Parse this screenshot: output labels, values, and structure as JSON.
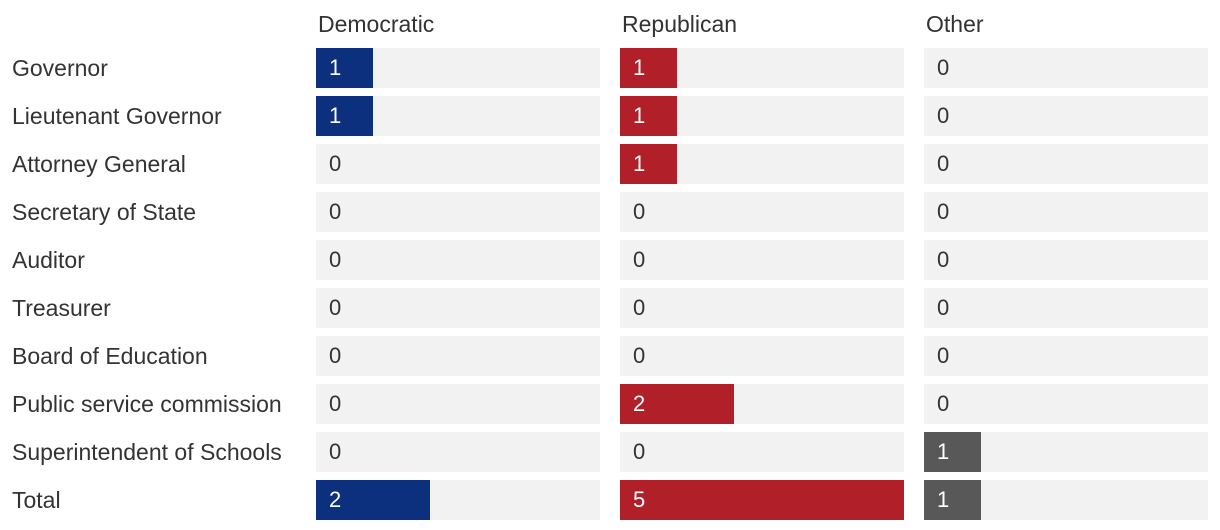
{
  "chart_data": {
    "type": "bar",
    "columns": [
      {
        "name": "Democratic",
        "color": "#0c2f7e"
      },
      {
        "name": "Republican",
        "color": "#b11f29"
      },
      {
        "name": "Other",
        "color": "#585858"
      }
    ],
    "categories": [
      "Governor",
      "Lieutenant Governor",
      "Attorney General",
      "Secretary of State",
      "Auditor",
      "Treasurer",
      "Board of Education",
      "Public service commission",
      "Superintendent of Schools",
      "Total"
    ],
    "series": [
      {
        "name": "Democratic",
        "values": [
          1,
          1,
          0,
          0,
          0,
          0,
          0,
          0,
          0,
          2
        ]
      },
      {
        "name": "Republican",
        "values": [
          1,
          1,
          1,
          0,
          0,
          0,
          0,
          2,
          0,
          5
        ]
      },
      {
        "name": "Other",
        "values": [
          0,
          0,
          0,
          0,
          0,
          0,
          0,
          0,
          1,
          1
        ]
      }
    ],
    "xlim": [
      0,
      5
    ]
  }
}
